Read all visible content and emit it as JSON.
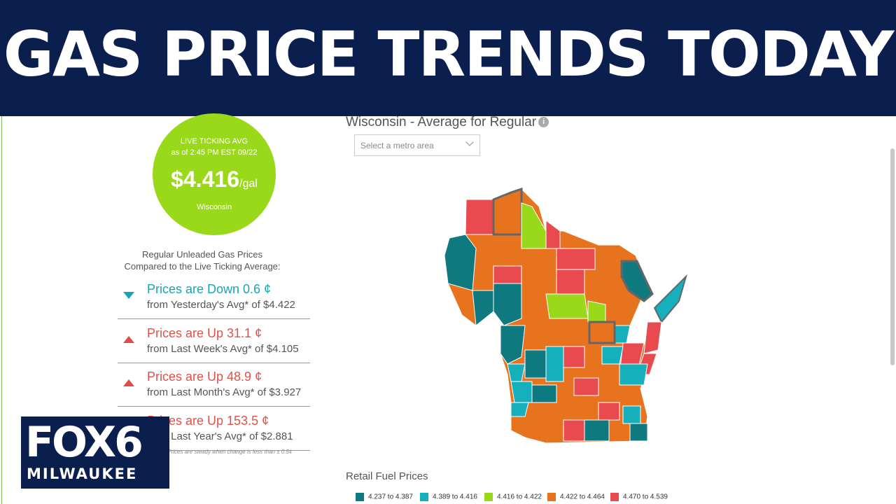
{
  "banner": {
    "title": "GAS PRICE TRENDS TODAY"
  },
  "live_avg": {
    "label": "LIVE TICKING AVG",
    "as_of": "as of   2:45 PM EST 09/22",
    "price": "$4.416",
    "unit": "/gal",
    "state": "Wisconsin",
    "color": "#9ad81a"
  },
  "comparison": {
    "heading_line1": "Regular Unleaded Gas Prices",
    "heading_line2": "Compared to the Live Ticking Average:",
    "items": [
      {
        "direction": "down",
        "title": "Prices are Down 0.6 ¢",
        "detail": "from Yesterday's Avg* of $4.422"
      },
      {
        "direction": "up",
        "title": "Prices are Up 31.1 ¢",
        "detail": "from Last Week's Avg* of $4.105"
      },
      {
        "direction": "up",
        "title": "Prices are Up 48.9 ¢",
        "detail": "from Last Month's Avg* of $3.927"
      },
      {
        "direction": "up",
        "title": "Prices are Up 153.5 ¢",
        "detail": "from Last Year's Avg* of $2.881"
      }
    ],
    "footnote": "*Prices are steady when change is less than ± 0.5¢"
  },
  "map": {
    "title": "Wisconsin - Average for Regular",
    "metro_select_placeholder": "Select a metro area"
  },
  "retail": {
    "title": "Retail Fuel Prices",
    "legend": [
      {
        "label": "4.237 to 4.387",
        "color": "#0e7a7f"
      },
      {
        "label": "4.389 to 4.416",
        "color": "#16b0bd"
      },
      {
        "label": "4.416 to 4.422",
        "color": "#9ad81a"
      },
      {
        "label": "4.422 to 4.464",
        "color": "#e8731f"
      },
      {
        "label": "4.470 to 4.539",
        "color": "#e84a4f"
      }
    ]
  },
  "logo": {
    "brand": "FOX6",
    "city": "MILWAUKEE"
  },
  "icons": [
    "info-icon",
    "chevron-down-icon",
    "down-arrow-icon",
    "up-arrow-icon"
  ]
}
